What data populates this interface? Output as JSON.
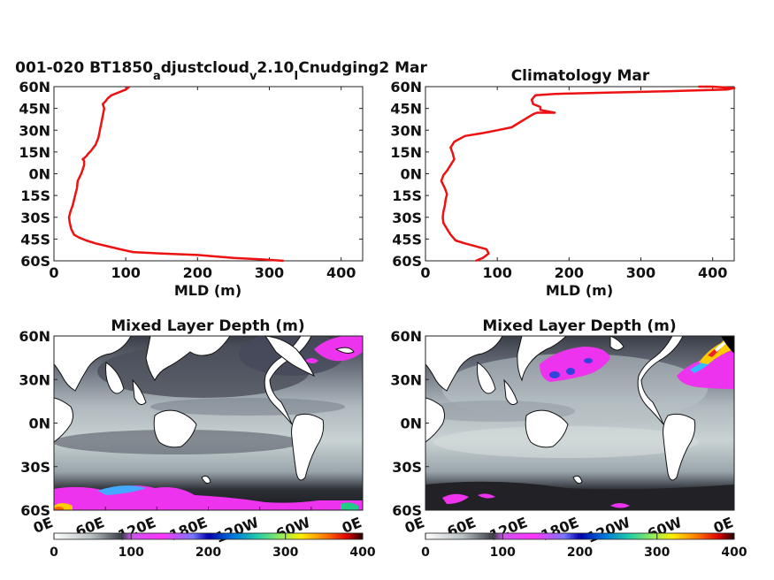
{
  "chart_data": [
    {
      "type": "line",
      "title": "001-020 BT1850_adjustcloud_v2.10_ICnudging2 Mar",
      "title_parts": [
        {
          "t": "001-020 BT1850"
        },
        {
          "t": "a",
          "sub": true
        },
        {
          "t": "djustcloud"
        },
        {
          "t": "v",
          "sub": true
        },
        {
          "t": "2.10"
        },
        {
          "t": "I",
          "sub": true
        },
        {
          "t": "Cnudging2 Mar"
        }
      ],
      "xlabel": "MLD (m)",
      "xlim": [
        0,
        430
      ],
      "ylim": [
        -60,
        60
      ],
      "xticks": [
        0,
        100,
        200,
        300,
        400
      ],
      "yticks": [
        60,
        45,
        30,
        15,
        0,
        -15,
        -30,
        -45,
        -60
      ],
      "ytick_labels": [
        "60N",
        "45N",
        "30N",
        "15N",
        "0N",
        "15S",
        "30S",
        "45S",
        "60S"
      ],
      "series_color": "#ee1111",
      "series": [
        {
          "x": [
            320,
            290,
            250,
            200,
            150,
            110,
            92,
            75,
            58,
            45,
            35,
            28,
            24,
            22,
            21,
            23,
            26,
            28,
            30,
            32,
            33,
            36,
            38,
            40,
            42,
            42,
            40,
            45,
            48,
            52,
            55,
            58,
            62,
            64,
            66,
            68,
            70,
            68,
            72,
            75,
            80,
            90,
            100,
            105
          ],
          "y": [
            -60,
            -59,
            -58,
            -56,
            -55,
            -54,
            -52,
            -50,
            -48,
            -46,
            -44,
            -42,
            -38,
            -34,
            -30,
            -26,
            -22,
            -18,
            -14,
            -10,
            -5,
            -2,
            0,
            3,
            6,
            9,
            10,
            12,
            14,
            16,
            18,
            20,
            25,
            30,
            35,
            40,
            45,
            48,
            50,
            52,
            54,
            56,
            58,
            60
          ]
        }
      ]
    },
    {
      "type": "line",
      "title": "Climatology Mar",
      "xlabel": "MLD (m)",
      "xlim": [
        0,
        430
      ],
      "ylim": [
        -60,
        60
      ],
      "xticks": [
        0,
        100,
        200,
        300,
        400
      ],
      "yticks": [
        60,
        45,
        30,
        15,
        0,
        -15,
        -30,
        -45,
        -60
      ],
      "ytick_labels": [
        "60N",
        "45N",
        "30N",
        "15N",
        "0N",
        "15S",
        "30S",
        "45S",
        "60S"
      ],
      "series_color": "#ee1111",
      "series": [
        {
          "x": [
            70,
            80,
            88,
            85,
            70,
            55,
            42,
            35,
            30,
            25,
            24,
            25,
            27,
            28,
            30,
            27,
            22,
            25,
            30,
            35,
            40,
            38,
            35,
            40,
            55,
            80,
            100,
            120,
            130,
            140,
            150,
            155,
            180,
            160,
            160,
            150,
            148,
            153,
            180,
            260,
            350,
            420,
            430,
            400,
            380
          ],
          "y": [
            -60,
            -58,
            -55,
            -52,
            -50,
            -48,
            -46,
            -42,
            -38,
            -34,
            -30,
            -26,
            -22,
            -18,
            -14,
            -10,
            -5,
            -1,
            2,
            6,
            10,
            14,
            18,
            22,
            26,
            28,
            30,
            32,
            35,
            38,
            41,
            42,
            42,
            44,
            46,
            48,
            51,
            54,
            55,
            56,
            57,
            58,
            59,
            60,
            60
          ]
        }
      ]
    },
    {
      "type": "heatmap",
      "title": "Mixed Layer Depth (m)",
      "ytick_labels": [
        "60N",
        "30N",
        "0N",
        "30S",
        "60S"
      ],
      "xtick_labels": [
        "0E",
        "60E",
        "120E",
        "180E",
        "120W",
        "60W",
        "0E"
      ],
      "colorbar": {
        "ticks": [
          "0",
          "100",
          "200",
          "300",
          "400"
        ],
        "range": [
          0,
          400
        ]
      }
    },
    {
      "type": "heatmap",
      "title": "Mixed Layer Depth (m)",
      "ytick_labels": [
        "60N",
        "30N",
        "0N",
        "30S",
        "60S"
      ],
      "xtick_labels": [
        "0E",
        "60E",
        "120E",
        "180E",
        "120W",
        "60W",
        "0E"
      ],
      "colorbar": {
        "ticks": [
          "0",
          "100",
          "200",
          "300",
          "400"
        ],
        "range": [
          0,
          400
        ]
      }
    }
  ]
}
